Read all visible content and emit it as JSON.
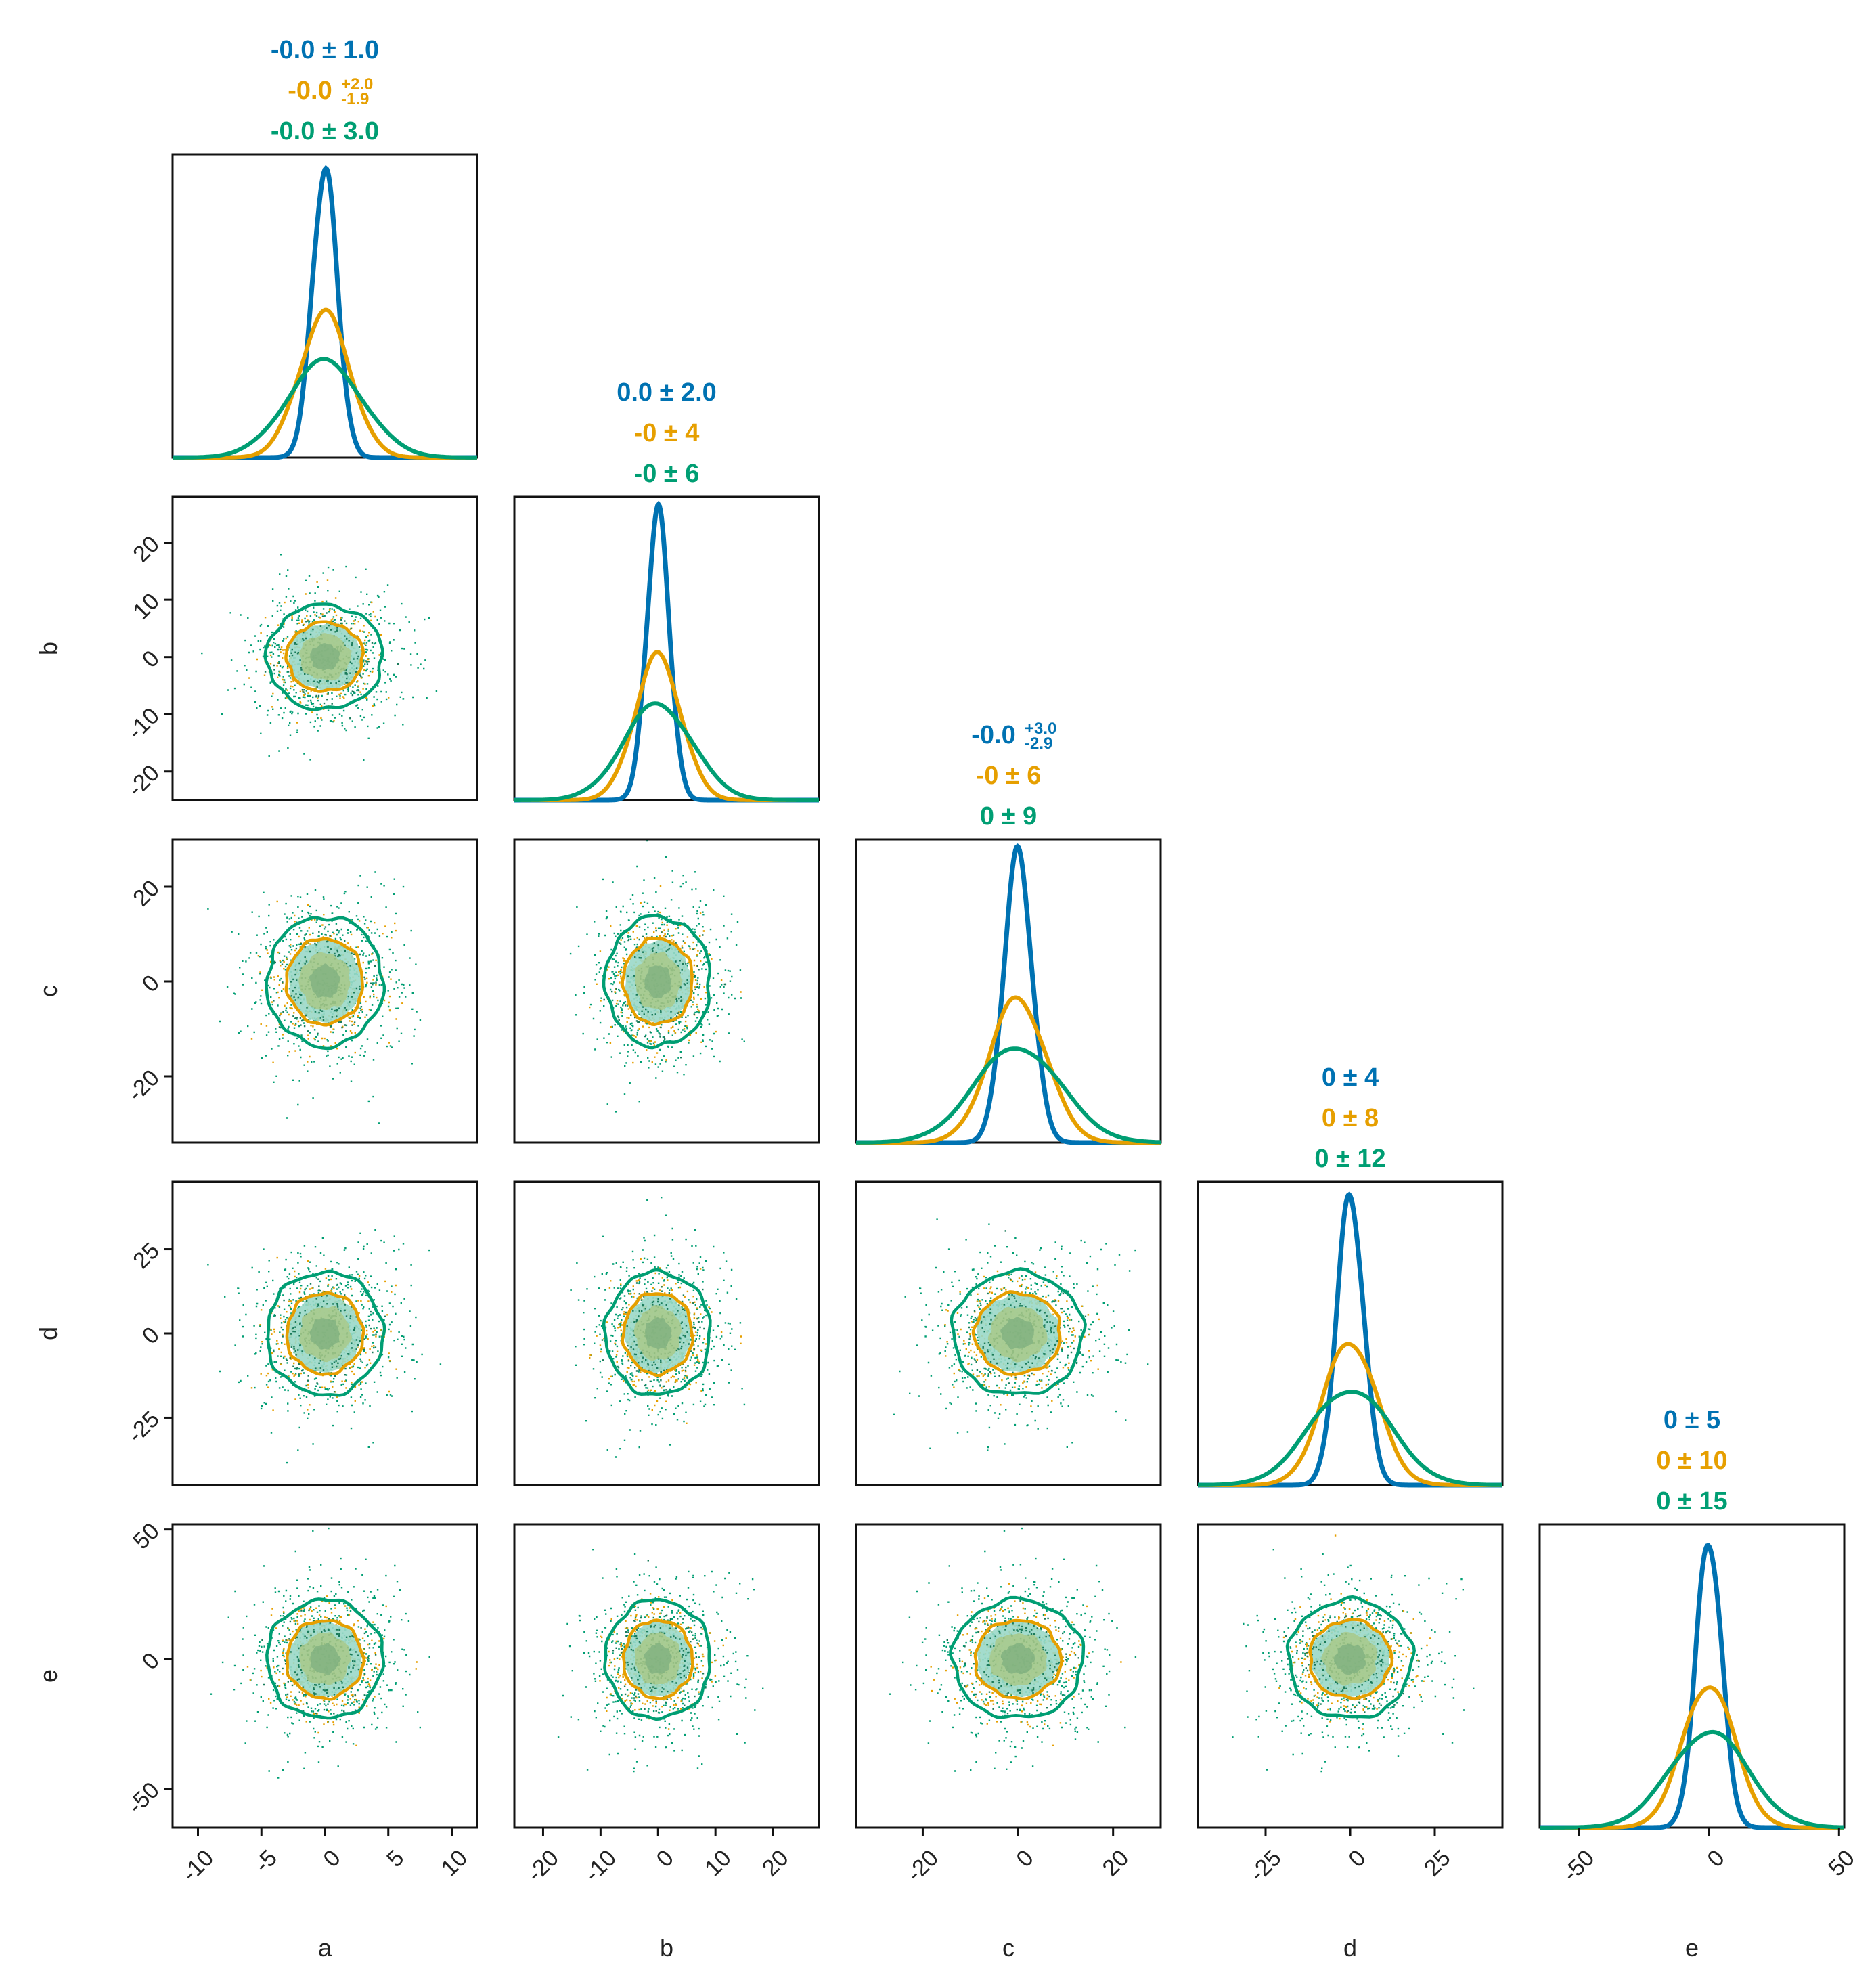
{
  "chart_data": {
    "type": "corner",
    "parameters": [
      "a",
      "b",
      "c",
      "d",
      "e"
    ],
    "series": [
      {
        "name": "",
        "color": "#0072b2",
        "std": [
          1,
          2,
          3,
          4,
          5
        ]
      },
      {
        "name": "",
        "color": "#e69f00",
        "std": [
          2,
          4,
          6,
          8,
          10
        ]
      },
      {
        "name": "",
        "color": "#009e73",
        "std": [
          3,
          6,
          9,
          12,
          15
        ]
      }
    ],
    "scatter_colors": {
      "orange": "#e69f00",
      "green": "#009e73",
      "dark_green": "#1a7a5a"
    },
    "fill_colors": {
      "outer": "#9ad8c8",
      "inner": "#a9c98a",
      "core": "#7fb07f"
    },
    "xlim": [
      [
        -12,
        12
      ],
      [
        -25,
        28
      ],
      [
        -34,
        30
      ],
      [
        -45,
        45
      ],
      [
        -65,
        52
      ]
    ],
    "ticks": [
      [
        "-10",
        "-5",
        "0",
        "5",
        "10"
      ],
      [
        "-20",
        "-10",
        "0",
        "10",
        "20"
      ],
      [
        "-20",
        "0",
        "20"
      ],
      [
        "-25",
        "0",
        "25"
      ],
      [
        "-50",
        "0",
        "50"
      ]
    ],
    "tick_values": [
      [
        -10,
        -5,
        0,
        5,
        10
      ],
      [
        -20,
        -10,
        0,
        10,
        20
      ],
      [
        -20,
        0,
        20
      ],
      [
        -25,
        0,
        25
      ],
      [
        -50,
        0,
        50
      ]
    ],
    "titles": [
      [
        {
          "main": "-0.0 ± 1.0"
        },
        {
          "main": "-0.0",
          "sup": "+2.0",
          "sub": "-1.9"
        },
        {
          "main": "-0.0 ± 3.0"
        }
      ],
      [
        {
          "main": "0.0 ± 2.0"
        },
        {
          "main": "-0 ± 4"
        },
        {
          "main": "-0 ± 6"
        }
      ],
      [
        {
          "main": "-0.0",
          "sup": "+3.0",
          "sub": "-2.9"
        },
        {
          "main": "-0 ± 6"
        },
        {
          "main": "0 ± 9"
        }
      ],
      [
        {
          "main": "0 ± 4"
        },
        {
          "main": "0 ± 8"
        },
        {
          "main": "0 ± 12"
        }
      ],
      [
        {
          "main": "0 ± 5"
        },
        {
          "main": "0 ± 10"
        },
        {
          "main": "0 ± 15"
        }
      ]
    ]
  }
}
